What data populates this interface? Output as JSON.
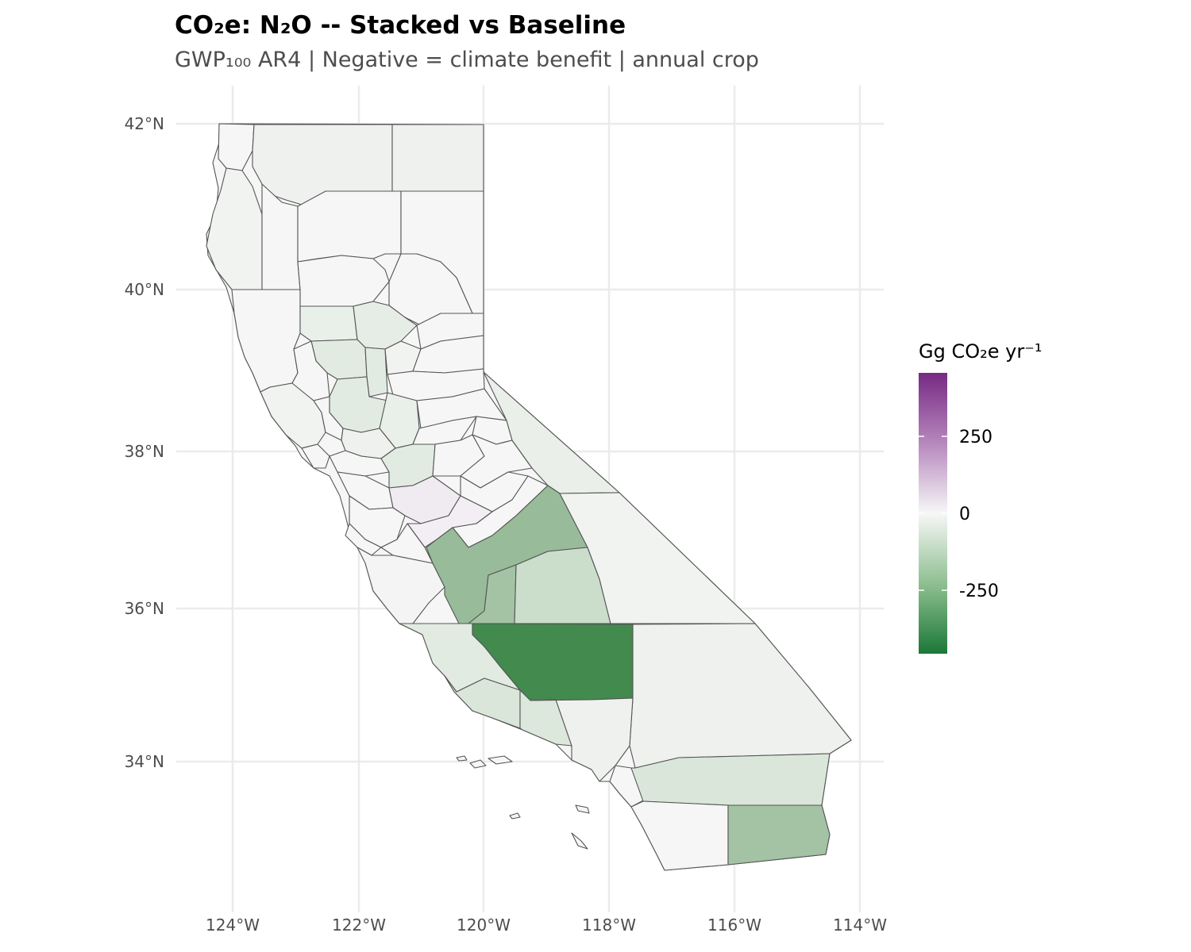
{
  "title": "CO₂e: N₂O -- Stacked vs Baseline",
  "subtitle": "GWP₁₀₀ AR4 | Negative = climate benefit | annual crop",
  "chart_data": {
    "type": "choropleth",
    "region": "California counties",
    "x_ticks": [
      "124°W",
      "122°W",
      "120°W",
      "118°W",
      "116°W",
      "114°W"
    ],
    "y_ticks": [
      "42°N",
      "40°N",
      "38°N",
      "36°N",
      "34°N"
    ],
    "grid": true,
    "legend": {
      "title": "Gg CO₂e yr⁻¹",
      "labels": [
        "250",
        "0",
        "-250"
      ],
      "range": [
        -450,
        450
      ],
      "colors": {
        "low": "#1b7837",
        "mid": "#f7f7f7",
        "high": "#762a83"
      },
      "placement": "right"
    },
    "colors": {
      "county_fill": "#f6f6f6",
      "county_border": "#555555",
      "grid": "#ebebeb"
    }
  }
}
